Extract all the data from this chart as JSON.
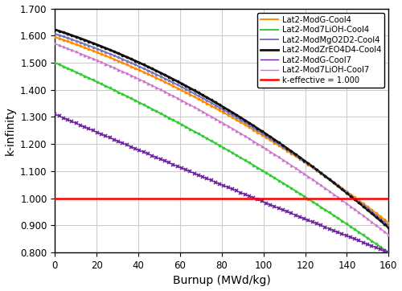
{
  "xlabel": "Burnup (MWd/kg)",
  "ylabel": "k-infinity",
  "xlim": [
    0,
    160
  ],
  "ylim": [
    0.8,
    1.7
  ],
  "yticks": [
    0.8,
    0.9,
    1.0,
    1.1,
    1.2,
    1.3,
    1.4,
    1.5,
    1.6,
    1.7
  ],
  "xticks": [
    0,
    20,
    40,
    60,
    80,
    100,
    120,
    140,
    160
  ],
  "keff_line": 1.0,
  "curves": [
    {
      "label": "Lat2-ModG-Cool4",
      "color": "#FF8C00",
      "marker": "o",
      "ms": 2.0,
      "lw": 1.4,
      "y0": 1.595,
      "y_end": 0.91,
      "concavity": 2.2
    },
    {
      "label": "Lat2-Mod7LiOH-Cool4",
      "color": "#32CD32",
      "marker": "o",
      "ms": 2.0,
      "lw": 1.4,
      "y0": 1.5,
      "y_end": 0.8,
      "concavity": 2.5
    },
    {
      "label": "Lat2-ModMgO2D2-Cool4",
      "color": "#7777BB",
      "marker": "o",
      "ms": 2.0,
      "lw": 1.4,
      "y0": 1.607,
      "y_end": 0.9,
      "concavity": 2.2
    },
    {
      "label": "Lat2-ModZrEO4D4-Cool4",
      "color": "#111111",
      "marker": "o",
      "ms": 2.0,
      "lw": 2.0,
      "y0": 1.622,
      "y_end": 0.893,
      "concavity": 2.2
    },
    {
      "label": "Lat2-ModG-Cool7",
      "color": "#6B1F9E",
      "marker": "x",
      "ms": 3.5,
      "lw": 1.0,
      "y0": 1.31,
      "y_end": 0.8,
      "concavity": 1.3
    },
    {
      "label": "Lat2-Mod7LiOH-Cool7",
      "color": "#CC77CC",
      "marker": "^",
      "ms": 2.0,
      "lw": 1.0,
      "y0": 1.57,
      "y_end": 0.865,
      "concavity": 2.3
    }
  ],
  "background_color": "#ffffff",
  "grid_color": "#cccccc",
  "legend_fontsize": 7.2,
  "axis_fontsize": 10,
  "tick_fontsize": 8.5
}
